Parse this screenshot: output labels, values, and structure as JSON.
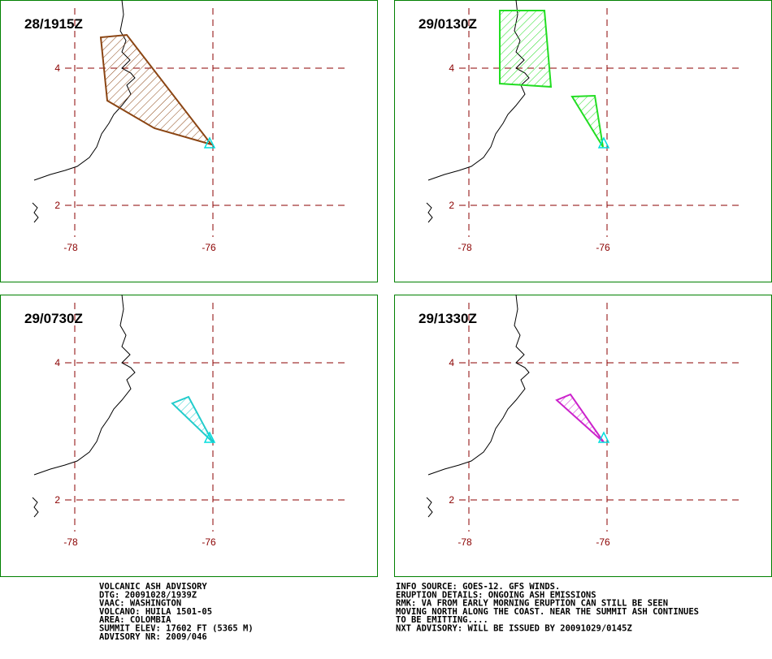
{
  "lat_labels": [
    "4",
    "2"
  ],
  "lon_labels": [
    "-78",
    "-76"
  ],
  "panels": [
    {
      "time": "28/1915Z",
      "color": "#8b4513"
    },
    {
      "time": "29/0130Z",
      "color": "#22dd22"
    },
    {
      "time": "29/0730Z",
      "color": "#22cccc"
    },
    {
      "time": "29/1330Z",
      "color": "#cc22cc"
    }
  ],
  "info_left": [
    "VOLCANIC ASH ADVISORY",
    "DTG: 20091028/1939Z",
    "VAAC: WASHINGTON",
    "VOLCANO: HUILA 1501-05",
    "AREA: COLOMBIA",
    "SUMMIT ELEV: 17602 FT (5365 M)",
    "ADVISORY NR: 2009/046"
  ],
  "info_right": [
    "INFO SOURCE: GOES-12. GFS WINDS.",
    "ERUPTION DETAILS: ONGOING ASH EMISSIONS",
    "RMK: VA FROM EARLY MORNING ERUPTION CAN STILL BE SEEN",
    "MOVING NORTH ALONG THE COAST. NEAR THE SUMMIT ASH CONTINUES",
    "TO BE EMITTING....",
    "NXT ADVISORY: WILL BE ISSUED BY 20091029/0145Z"
  ]
}
